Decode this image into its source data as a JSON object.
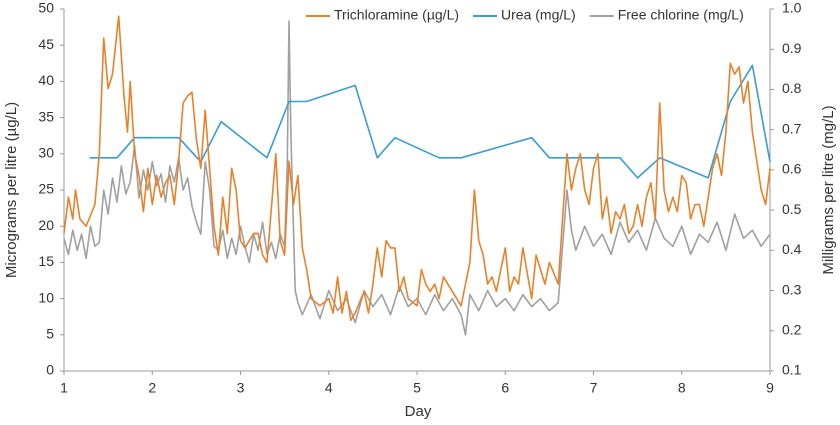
{
  "chart_data": {
    "type": "line",
    "x_label": "Day",
    "y_label": "Micrograms per litre  (µg/L)",
    "y2_label": "Milligrams per litre (mg/L)",
    "legend": "top",
    "xlim": [
      1,
      9
    ],
    "xticks": [
      1,
      2,
      3,
      4,
      5,
      6,
      7,
      8,
      9
    ],
    "ylim": [
      0,
      50
    ],
    "yticks": [
      0,
      5,
      10,
      15,
      20,
      25,
      30,
      35,
      40,
      45,
      50
    ],
    "y2lim": [
      0.1,
      1.0
    ],
    "y2ticks": [
      0.1,
      0.2,
      0.3,
      0.4,
      0.5,
      0.6,
      0.7,
      0.8,
      0.9,
      {
        "value": 1.0,
        "label": "1.0"
      }
    ],
    "series": [
      {
        "name": "Trichloramine (µg/L)",
        "color": "#e8822a",
        "x": [
          1.0,
          1.05,
          1.1,
          1.13,
          1.18,
          1.25,
          1.35,
          1.4,
          1.45,
          1.5,
          1.55,
          1.62,
          1.68,
          1.72,
          1.75,
          1.8,
          1.85,
          1.9,
          1.95,
          2.0,
          2.05,
          2.1,
          2.15,
          2.2,
          2.25,
          2.3,
          2.35,
          2.4,
          2.45,
          2.5,
          2.55,
          2.6,
          2.65,
          2.7,
          2.75,
          2.8,
          2.85,
          2.9,
          2.95,
          3.0,
          3.05,
          3.1,
          3.15,
          3.2,
          3.25,
          3.3,
          3.4,
          3.45,
          3.5,
          3.55,
          3.6,
          3.65,
          3.7,
          3.75,
          3.8,
          3.9,
          4.0,
          4.05,
          4.1,
          4.15,
          4.2,
          4.25,
          4.3,
          4.4,
          4.45,
          4.5,
          4.55,
          4.6,
          4.65,
          4.7,
          4.75,
          4.8,
          4.85,
          4.9,
          5.0,
          5.05,
          5.1,
          5.15,
          5.2,
          5.25,
          5.3,
          5.4,
          5.5,
          5.55,
          5.6,
          5.65,
          5.7,
          5.75,
          5.8,
          5.85,
          5.9,
          6.0,
          6.05,
          6.1,
          6.15,
          6.2,
          6.3,
          6.35,
          6.45,
          6.5,
          6.6,
          6.7,
          6.75,
          6.8,
          6.85,
          6.9,
          6.95,
          7.0,
          7.05,
          7.1,
          7.15,
          7.2,
          7.25,
          7.3,
          7.35,
          7.4,
          7.45,
          7.5,
          7.55,
          7.6,
          7.65,
          7.7,
          7.75,
          7.8,
          7.85,
          7.9,
          7.95,
          8.0,
          8.05,
          8.1,
          8.15,
          8.2,
          8.25,
          8.3,
          8.35,
          8.4,
          8.45,
          8.5,
          8.55,
          8.6,
          8.65,
          8.7,
          8.75,
          8.8,
          8.85,
          8.9,
          8.95,
          9.0
        ],
        "values": [
          19,
          24,
          21,
          25,
          21,
          20,
          23,
          30,
          46,
          39,
          41,
          49,
          38,
          33,
          40,
          30,
          27,
          22,
          28,
          23,
          27,
          24,
          26,
          27,
          23,
          29,
          37,
          38,
          38.5,
          32,
          28,
          36,
          28,
          20,
          16,
          24,
          19,
          28,
          25,
          18,
          17,
          18,
          19,
          19,
          16,
          15,
          30,
          18,
          16,
          29,
          23,
          27,
          17,
          14,
          10,
          9,
          10,
          8,
          13,
          8,
          11,
          7,
          8,
          11,
          8,
          12,
          17,
          13,
          18,
          17,
          17,
          11,
          13,
          10,
          9,
          14,
          12,
          11,
          12,
          10,
          13,
          11,
          9,
          12,
          15,
          25,
          18,
          16,
          12,
          13,
          11,
          17,
          11,
          13,
          12,
          17,
          10,
          16,
          12,
          15,
          12,
          30,
          25,
          28,
          30,
          25,
          23,
          28,
          30,
          21,
          24,
          19,
          22,
          21,
          23,
          19,
          20,
          23,
          20,
          24,
          26,
          21,
          37,
          25,
          22,
          24,
          22,
          27,
          26,
          21,
          23,
          23,
          20,
          24,
          28,
          30,
          27,
          33,
          42.5,
          41,
          42,
          37,
          40,
          33,
          29,
          25,
          23,
          28
        ]
      },
      {
        "name": "Urea (mg/L)",
        "color": "#3a9bd5",
        "axis": "y2",
        "x": [
          1.29,
          1.6,
          1.8,
          2.3,
          2.55,
          2.78,
          3.3,
          3.55,
          3.75,
          4.3,
          4.55,
          4.75,
          5.25,
          5.5,
          6.3,
          6.5,
          7.3,
          7.5,
          7.75,
          8.3,
          8.55,
          8.8,
          9.0
        ],
        "values": [
          0.63,
          0.63,
          0.68,
          0.68,
          0.62,
          0.72,
          0.63,
          0.77,
          0.77,
          0.81,
          0.63,
          0.68,
          0.63,
          0.63,
          0.68,
          0.63,
          0.63,
          0.58,
          0.63,
          0.58,
          0.77,
          0.86,
          0.62
        ]
      },
      {
        "name": "Free chlorine (mg/L)",
        "color": "#a0a0a0",
        "axis": "y2",
        "x": [
          1.0,
          1.05,
          1.1,
          1.15,
          1.2,
          1.25,
          1.3,
          1.35,
          1.4,
          1.45,
          1.5,
          1.55,
          1.6,
          1.65,
          1.7,
          1.75,
          1.8,
          1.85,
          1.9,
          1.95,
          2.0,
          2.05,
          2.1,
          2.15,
          2.2,
          2.25,
          2.3,
          2.35,
          2.4,
          2.45,
          2.5,
          2.55,
          2.6,
          2.65,
          2.7,
          2.75,
          2.8,
          2.85,
          2.9,
          2.95,
          3.0,
          3.05,
          3.1,
          3.15,
          3.2,
          3.25,
          3.3,
          3.35,
          3.4,
          3.45,
          3.5,
          3.53,
          3.55,
          3.57,
          3.6,
          3.62,
          3.65,
          3.7,
          3.8,
          3.9,
          4.0,
          4.1,
          4.2,
          4.3,
          4.4,
          4.5,
          4.6,
          4.7,
          4.8,
          4.9,
          5.0,
          5.1,
          5.2,
          5.3,
          5.4,
          5.5,
          5.55,
          5.6,
          5.7,
          5.8,
          5.9,
          6.0,
          6.1,
          6.2,
          6.3,
          6.4,
          6.5,
          6.6,
          6.7,
          6.75,
          6.8,
          6.9,
          7.0,
          7.1,
          7.2,
          7.3,
          7.4,
          7.5,
          7.6,
          7.7,
          7.8,
          7.9,
          8.0,
          8.1,
          8.2,
          8.3,
          8.4,
          8.5,
          8.6,
          8.7,
          8.8,
          8.9,
          9.0
        ],
        "values": [
          0.43,
          0.39,
          0.45,
          0.4,
          0.44,
          0.38,
          0.46,
          0.41,
          0.42,
          0.55,
          0.49,
          0.58,
          0.52,
          0.61,
          0.54,
          0.57,
          0.66,
          0.53,
          0.6,
          0.55,
          0.62,
          0.56,
          0.59,
          0.52,
          0.61,
          0.57,
          0.63,
          0.55,
          0.58,
          0.51,
          0.47,
          0.44,
          0.62,
          0.55,
          0.41,
          0.4,
          0.45,
          0.38,
          0.43,
          0.39,
          0.46,
          0.41,
          0.37,
          0.44,
          0.4,
          0.47,
          0.39,
          0.42,
          0.38,
          0.44,
          0.41,
          0.62,
          0.97,
          0.7,
          0.45,
          0.3,
          0.27,
          0.24,
          0.29,
          0.23,
          0.3,
          0.25,
          0.28,
          0.22,
          0.3,
          0.26,
          0.29,
          0.24,
          0.31,
          0.26,
          0.28,
          0.24,
          0.29,
          0.25,
          0.28,
          0.24,
          0.19,
          0.29,
          0.25,
          0.3,
          0.26,
          0.28,
          0.25,
          0.29,
          0.26,
          0.28,
          0.25,
          0.27,
          0.55,
          0.45,
          0.4,
          0.46,
          0.41,
          0.44,
          0.39,
          0.47,
          0.42,
          0.45,
          0.4,
          0.48,
          0.43,
          0.41,
          0.46,
          0.39,
          0.44,
          0.42,
          0.47,
          0.4,
          0.49,
          0.43,
          0.45,
          0.41,
          0.44
        ]
      }
    ]
  }
}
